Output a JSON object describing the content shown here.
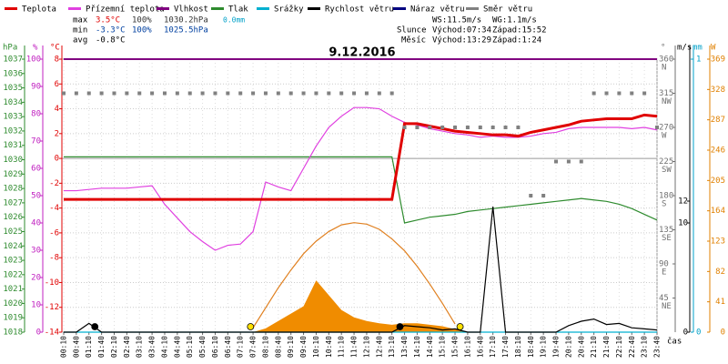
{
  "chart_data": {
    "type": "line",
    "title": "9.12.2016",
    "x_label": "čas",
    "x": [
      "00:10",
      "00:40",
      "01:10",
      "01:40",
      "02:10",
      "02:40",
      "03:10",
      "03:40",
      "04:10",
      "04:40",
      "05:10",
      "05:40",
      "06:10",
      "06:40",
      "07:10",
      "07:40",
      "08:10",
      "08:40",
      "09:10",
      "09:40",
      "10:10",
      "10:40",
      "11:10",
      "11:40",
      "12:10",
      "12:40",
      "13:10",
      "13:40",
      "14:10",
      "14:40",
      "15:10",
      "15:40",
      "16:10",
      "16:40",
      "17:10",
      "17:40",
      "18:10",
      "18:40",
      "19:10",
      "19:40",
      "20:10",
      "20:40",
      "21:10",
      "21:40",
      "22:10",
      "22:40",
      "23:10",
      "23:40"
    ],
    "grid": true,
    "axes": {
      "hpa": {
        "label": "hPa",
        "color": "#2e8b2e",
        "lim": [
          1018,
          1037
        ],
        "ticks": [
          1018,
          1019,
          1020,
          1021,
          1022,
          1023,
          1024,
          1025,
          1026,
          1027,
          1028,
          1029,
          1030,
          1031,
          1032,
          1033,
          1034,
          1035,
          1036,
          1037
        ]
      },
      "pct": {
        "label": "%",
        "color": "#c020c0",
        "lim": [
          0,
          100
        ],
        "ticks": [
          0,
          10,
          20,
          30,
          40,
          50,
          60,
          70,
          80,
          90,
          100
        ]
      },
      "temp": {
        "label": "°C",
        "color": "#e00000",
        "lim": [
          -14,
          8
        ],
        "ticks": [
          -14,
          -12,
          -10,
          -8,
          -6,
          -4,
          -2,
          0,
          2,
          4,
          6,
          8
        ]
      },
      "dir": {
        "label": "°",
        "color": "#707070",
        "lim": [
          0,
          360
        ],
        "ticks": [
          45,
          90,
          135,
          180,
          225,
          270,
          315,
          360
        ],
        "compass": [
          "NE",
          "E",
          "SE",
          "S",
          "SW",
          "W",
          "NW",
          "N"
        ]
      },
      "ms": {
        "label": "m/s",
        "color": "#000000",
        "lim": [
          0,
          25
        ],
        "ticks": [
          0,
          10,
          12
        ]
      },
      "mm": {
        "label": "mm",
        "color": "#00a0c8",
        "lim": [
          0,
          1
        ],
        "ticks": [
          0,
          1
        ]
      },
      "w": {
        "label": "W",
        "color": "#e08000",
        "lim": [
          0,
          369
        ],
        "ticks": [
          0,
          41,
          82,
          123,
          164,
          205,
          246,
          287,
          328,
          369
        ]
      }
    },
    "series": [
      {
        "name": "Teplota",
        "color": "#e00000",
        "axis": "temp",
        "style": "line",
        "values": [
          -3.3,
          -3.3,
          -3.3,
          -3.3,
          -3.3,
          -3.3,
          -3.3,
          -3.3,
          -3.3,
          -3.3,
          -3.3,
          -3.3,
          -3.3,
          -3.3,
          -3.3,
          -3.3,
          -3.3,
          -3.3,
          -3.3,
          -3.3,
          -3.3,
          -3.3,
          -3.3,
          -3.3,
          -3.3,
          -3.3,
          -3.3,
          2.8,
          2.8,
          2.6,
          2.4,
          2.2,
          2.1,
          2.0,
          1.9,
          1.9,
          1.8,
          2.1,
          2.3,
          2.5,
          2.7,
          3.0,
          3.1,
          3.2,
          3.2,
          3.2,
          3.5,
          3.4
        ]
      },
      {
        "name": "Přízemní teplota",
        "color": "#e040e0",
        "axis": "temp",
        "style": "line",
        "values": [
          -2.6,
          -2.6,
          -2.5,
          -2.4,
          -2.4,
          -2.4,
          -2.3,
          -2.2,
          -3.7,
          -4.8,
          -5.9,
          -6.7,
          -7.4,
          -7.0,
          -6.9,
          -5.9,
          -1.9,
          -2.3,
          -2.6,
          -0.8,
          1.0,
          2.5,
          3.4,
          4.1,
          4.1,
          4.0,
          3.4,
          2.9,
          2.7,
          2.4,
          2.2,
          2.0,
          1.9,
          1.7,
          1.8,
          1.7,
          1.7,
          1.8,
          2.0,
          2.1,
          2.4,
          2.5,
          2.5,
          2.5,
          2.5,
          2.4,
          2.5,
          2.3
        ]
      },
      {
        "name": "Vlhkost",
        "color": "#800080",
        "axis": "pct",
        "style": "line",
        "values": [
          100,
          100,
          100,
          100,
          100,
          100,
          100,
          100,
          100,
          100,
          100,
          100,
          100,
          100,
          100,
          100,
          100,
          100,
          100,
          100,
          100,
          100,
          100,
          100,
          100,
          100,
          100,
          100,
          100,
          100,
          100,
          100,
          100,
          100,
          100,
          100,
          100,
          100,
          100,
          100,
          100,
          100,
          100,
          100,
          100,
          100,
          100,
          100
        ]
      },
      {
        "name": "Tlak",
        "color": "#2e8b2e",
        "axis": "hpa",
        "style": "line",
        "values": [
          1030.2,
          1030.2,
          1030.2,
          1030.2,
          1030.2,
          1030.2,
          1030.2,
          1030.2,
          1030.2,
          1030.2,
          1030.2,
          1030.2,
          1030.2,
          1030.2,
          1030.2,
          1030.2,
          1030.2,
          1030.2,
          1030.2,
          1030.2,
          1030.2,
          1030.2,
          1030.2,
          1030.2,
          1030.2,
          1030.2,
          1030.2,
          1025.6,
          1025.8,
          1026.0,
          1026.1,
          1026.2,
          1026.4,
          1026.5,
          1026.6,
          1026.7,
          1026.8,
          1026.9,
          1027.0,
          1027.1,
          1027.2,
          1027.3,
          1027.2,
          1027.1,
          1026.9,
          1026.6,
          1026.2,
          1025.8
        ]
      },
      {
        "name": "Srážky",
        "color": "#00b0d0",
        "axis": "mm",
        "style": "line",
        "values": [
          0,
          0,
          0,
          0,
          0,
          0,
          0,
          0,
          0,
          0,
          0,
          0,
          0,
          0,
          0,
          0,
          0,
          0,
          0,
          0,
          0,
          0,
          0,
          0,
          0,
          0,
          0,
          0,
          0,
          0,
          0,
          0,
          0,
          0,
          0,
          0,
          0,
          0,
          0,
          0,
          0,
          0,
          0,
          0,
          0,
          0,
          0,
          0
        ]
      },
      {
        "name": "Rychlost větru",
        "color": "#000000",
        "axis": "ms",
        "style": "line",
        "values": [
          0,
          0,
          0.8,
          0,
          0,
          0,
          0,
          0,
          0,
          0,
          0,
          0,
          0,
          0,
          0,
          0,
          0,
          0,
          0,
          0,
          0,
          0,
          0,
          0,
          0,
          0,
          0,
          0.6,
          0.5,
          0.4,
          0.2,
          0.3,
          0,
          0,
          11.5,
          0,
          0,
          0,
          0,
          0,
          0.6,
          1.0,
          1.2,
          0.7,
          0.8,
          0.4,
          0.3,
          0.2
        ]
      },
      {
        "name": "Náraz větru",
        "color": "#000080",
        "axis": "ms",
        "style": "line",
        "values": [
          null,
          null,
          null,
          null,
          null,
          null,
          null,
          null,
          null,
          null,
          null,
          null,
          null,
          null,
          null,
          null,
          null,
          null,
          null,
          null,
          null,
          null,
          null,
          null,
          null,
          null,
          null,
          null,
          null,
          null,
          null,
          null,
          null,
          null,
          null,
          null,
          null,
          null,
          null,
          null,
          null,
          null,
          null,
          null,
          null,
          null,
          null,
          null
        ]
      },
      {
        "name": "Směr větru",
        "color": "#808080",
        "axis": "dir",
        "style": "scatter",
        "values": [
          315,
          315,
          315,
          315,
          315,
          315,
          315,
          315,
          315,
          315,
          315,
          315,
          315,
          315,
          315,
          315,
          315,
          315,
          315,
          315,
          315,
          315,
          315,
          315,
          315,
          315,
          315,
          270,
          270,
          270,
          270,
          270,
          270,
          270,
          270,
          270,
          270,
          180,
          180,
          225,
          225,
          225,
          315,
          315,
          315,
          315,
          315,
          270
        ]
      },
      {
        "color": "#f08c00",
        "axis": "w",
        "style": "area",
        "values": [
          0,
          0,
          0,
          0,
          0,
          0,
          0,
          0,
          0,
          0,
          0,
          0,
          0,
          0,
          0,
          0,
          5,
          15,
          25,
          35,
          70,
          50,
          30,
          20,
          15,
          12,
          10,
          12,
          12,
          10,
          8,
          4,
          0,
          0,
          0,
          0,
          0,
          0,
          0,
          0,
          0,
          0,
          0,
          0,
          0,
          0,
          0,
          0
        ]
      },
      {
        "color": "#e08020",
        "axis": "w",
        "style": "line",
        "values": [
          null,
          null,
          null,
          null,
          null,
          null,
          null,
          null,
          null,
          null,
          null,
          null,
          null,
          null,
          null,
          6,
          33,
          60,
          84,
          106,
          123,
          136,
          145,
          148,
          146,
          139,
          126,
          110,
          89,
          65,
          39,
          11,
          null,
          null,
          null,
          null,
          null,
          null,
          null,
          null,
          null,
          null,
          null,
          null,
          null,
          null,
          null,
          null
        ]
      }
    ],
    "stats": {
      "max": {
        "label": "max",
        "temp": "3.5°C",
        "hum": "100%",
        "press": "1030.2hPa",
        "rain": "0.0mm"
      },
      "min": {
        "label": "min",
        "temp": "-3.3°C",
        "hum": "100%",
        "press": "1025.5hPa"
      },
      "avg": {
        "label": "avg",
        "temp": "-0.8°C"
      },
      "ws": "WS:11.5m/s",
      "wg": "WG:1.1m/s",
      "sun": {
        "label": "Slunce",
        "rise": "Východ:07:34",
        "set": "Západ:15:52"
      },
      "moon": {
        "label": "Měsíc",
        "rise": "Východ:13:29",
        "set": "Západ:1:24"
      }
    }
  }
}
